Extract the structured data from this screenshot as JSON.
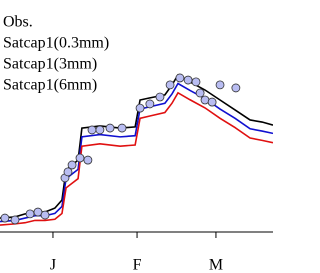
{
  "chart_data": {
    "type": "line",
    "legend": "upper left",
    "xlim": [
      0,
      100
    ],
    "ylim": [
      0,
      100
    ],
    "xticks": [
      {
        "value": 19.4,
        "label": "J"
      },
      {
        "value": 50.2,
        "label": "F"
      },
      {
        "value": 79.1,
        "label": "M"
      }
    ],
    "x": [
      0,
      5.5,
      9.2,
      12.8,
      16.5,
      20.1,
      22.7,
      24.2,
      26.4,
      28.6,
      30,
      36.6,
      44,
      49.5,
      51.3,
      54.9,
      60.4,
      63,
      65.2,
      69.6,
      75.1,
      80.6,
      86.1,
      91.6,
      96,
      100
    ],
    "observations": {
      "name": "Obs.",
      "color": "#b9bdf2",
      "x": [
        1.8,
        5.5,
        11,
        13.9,
        16.5,
        23.8,
        24.9,
        26.4,
        29.3,
        32.2,
        33.7,
        36.6,
        40.3,
        44.7,
        51.3,
        54.9,
        58.6,
        62.3,
        65.9,
        68.9,
        71.8,
        73.3,
        75.1,
        77.7,
        80.6,
        86.4
      ],
      "values": [
        6.0,
        5.2,
        7.8,
        8.6,
        7.3,
        23.3,
        25.9,
        28.9,
        31.9,
        31.0,
        44.0,
        44.0,
        44.8,
        44.8,
        53.4,
        55.2,
        58.2,
        63.4,
        66.4,
        65.5,
        64.7,
        59.9,
        56.9,
        56.0,
        63.4,
        62.1
      ]
    },
    "series": [
      {
        "name": "Satcap1(0.3mm)",
        "color": "#000000",
        "values": [
          6.0,
          6.5,
          7.8,
          8.6,
          8.6,
          10.3,
          13.8,
          26.7,
          28.9,
          31.0,
          44.8,
          45.7,
          44.8,
          45.3,
          56.9,
          57.8,
          59.1,
          63.4,
          67.7,
          64.7,
          61.2,
          56.9,
          52.6,
          48.3,
          47.4,
          46.1
        ]
      },
      {
        "name": "Satcap1(3mm)",
        "color": "#1010d0",
        "values": [
          4.5,
          5,
          6,
          7,
          7,
          8,
          11,
          23,
          25,
          27,
          41,
          42,
          41,
          41.5,
          53,
          54,
          55.5,
          59.5,
          64,
          61,
          57.5,
          53,
          49,
          44.5,
          43.5,
          42.5
        ]
      },
      {
        "name": "Satcap1(6mm)",
        "color": "#e01010",
        "values": [
          3,
          3.5,
          4,
          5,
          5,
          5.5,
          8,
          19,
          21,
          23,
          37,
          38,
          37,
          37.5,
          49,
          50,
          51.5,
          55.5,
          60,
          57,
          53.5,
          49,
          45,
          40.5,
          39.5,
          38.5
        ]
      }
    ]
  }
}
